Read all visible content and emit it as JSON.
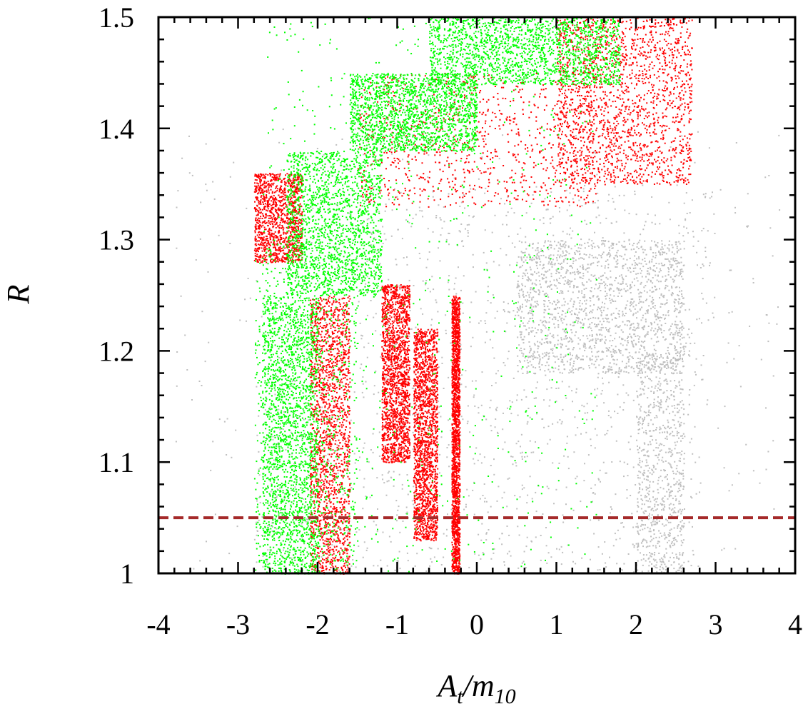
{
  "chart_data": {
    "type": "scatter",
    "xlabel": {
      "base": "A",
      "sub": "t",
      "sep": "/m",
      "sub2": "10"
    },
    "ylabel": "R",
    "xlim": [
      -4,
      4
    ],
    "ylim": [
      1,
      1.5
    ],
    "x_ticks": [
      -4,
      -3,
      -2,
      -1,
      0,
      1,
      2,
      3,
      4
    ],
    "x_tick_labels": [
      "-4",
      "-3",
      "-2",
      "-1",
      "0",
      "1",
      "2",
      "3",
      "4"
    ],
    "y_ticks": [
      1,
      1.1,
      1.2,
      1.3,
      1.4,
      1.5
    ],
    "y_tick_labels": [
      "1",
      "1.1",
      "1.2",
      "1.3",
      "1.4",
      "1.5"
    ],
    "grid": false,
    "legend": "none",
    "reference_line": {
      "y": 1.05,
      "style": "dashed",
      "color": "#a52a2a"
    },
    "series": [
      {
        "color": "#bfbfbf",
        "regions": [
          {
            "x": [
              -1.5,
              3.0
            ],
            "y": [
              1.15,
              1.35
            ],
            "density": 0.35
          },
          {
            "x": [
              0.5,
              2.6
            ],
            "y": [
              1.18,
              1.3
            ],
            "density": 0.9
          },
          {
            "x": [
              -2.8,
              2.8
            ],
            "y": [
              1.0,
              1.15
            ],
            "density": 0.35
          },
          {
            "x": [
              2.0,
              2.6
            ],
            "y": [
              1.0,
              1.2
            ],
            "density": 0.4
          },
          {
            "x": [
              -3.8,
              3.8
            ],
            "y": [
              1.0,
              1.4
            ],
            "density": 0.25
          }
        ]
      },
      {
        "color": "#ff0000",
        "regions": [
          {
            "x": [
              -2.1,
              -1.6
            ],
            "y": [
              1.0,
              1.25
            ],
            "density": 1.0
          },
          {
            "x": [
              -1.2,
              -0.85
            ],
            "y": [
              1.1,
              1.26
            ],
            "density": 1.0
          },
          {
            "x": [
              -0.8,
              -0.5
            ],
            "y": [
              1.03,
              1.22
            ],
            "density": 1.0
          },
          {
            "x": [
              -0.32,
              -0.22
            ],
            "y": [
              1.0,
              1.25
            ],
            "density": 1.0
          },
          {
            "x": [
              -2.8,
              -2.2
            ],
            "y": [
              1.28,
              1.36
            ],
            "density": 0.7
          },
          {
            "x": [
              -1.5,
              1.5
            ],
            "y": [
              1.33,
              1.45
            ],
            "density": 0.5
          },
          {
            "x": [
              1.0,
              2.7
            ],
            "y": [
              1.35,
              1.5
            ],
            "density": 1.0
          }
        ]
      },
      {
        "color": "#00ff00",
        "regions": [
          {
            "x": [
              -2.7,
              -2.0
            ],
            "y": [
              1.0,
              1.25
            ],
            "density": 1.0
          },
          {
            "x": [
              -2.4,
              -1.2
            ],
            "y": [
              1.25,
              1.38
            ],
            "density": 1.0
          },
          {
            "x": [
              -1.6,
              0.0
            ],
            "y": [
              1.38,
              1.45
            ],
            "density": 1.0
          },
          {
            "x": [
              -0.6,
              1.8
            ],
            "y": [
              1.44,
              1.5
            ],
            "density": 1.0
          },
          {
            "x": [
              -2.7,
              1.5
            ],
            "y": [
              1.0,
              1.5
            ],
            "density": 0.35
          },
          {
            "x": [
              -2.8,
              -1.5
            ],
            "y": [
              1.0,
              1.3
            ],
            "density": 0.5
          }
        ]
      }
    ]
  }
}
